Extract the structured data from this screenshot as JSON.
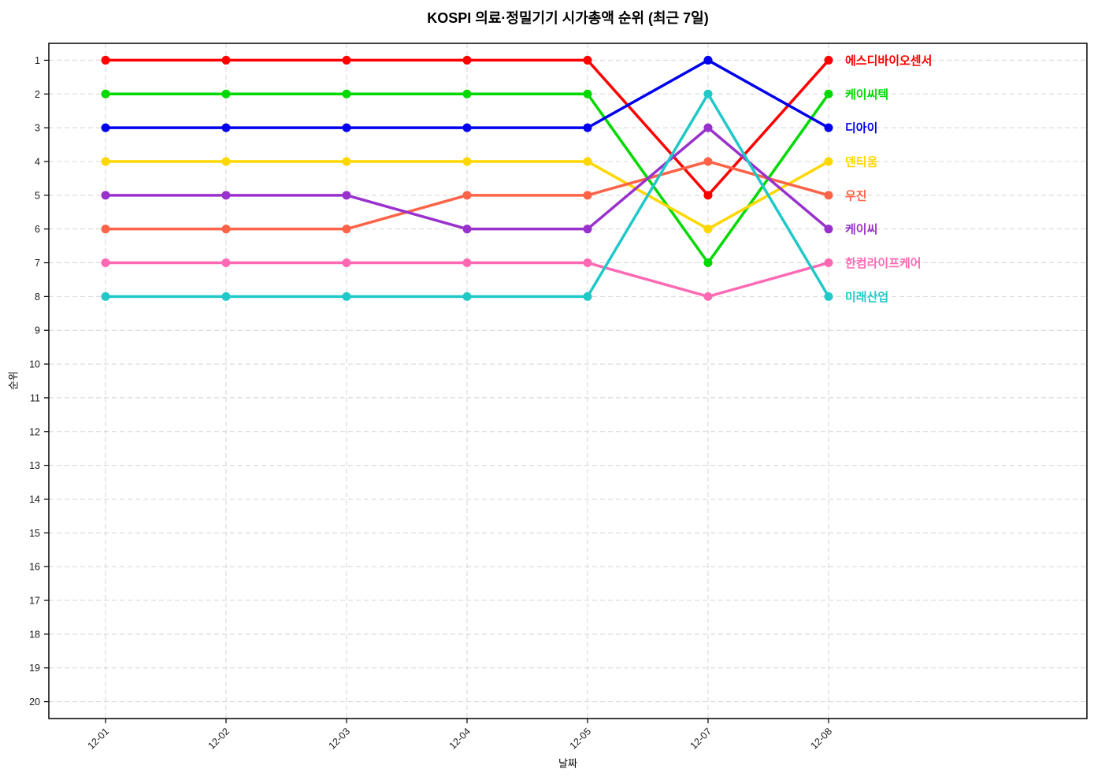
{
  "title": "KOSPI 의료·정밀기기 시가총액 순위 (최근 7일)",
  "chart_data": {
    "type": "line",
    "subtype": "bump-rank-chart",
    "title": "KOSPI 의료·정밀기기 시가총액 순위 (최근 7일)",
    "xlabel": "날짜",
    "ylabel": "순위",
    "x": [
      "12-01",
      "12-02",
      "12-03",
      "12-04",
      "12-05",
      "12-07",
      "12-08"
    ],
    "yticks": [
      1,
      2,
      3,
      4,
      5,
      6,
      7,
      8,
      9,
      10,
      11,
      12,
      13,
      14,
      15,
      16,
      17,
      18,
      19,
      20
    ],
    "ylim": [
      20.5,
      0.5
    ],
    "y_axis_inverted": true,
    "grid": "dashed-both-axes",
    "legend_position": "labels-right-of-last-point",
    "series": [
      {
        "name": "에스디바이오센서",
        "color": "#ff0000",
        "values": [
          1,
          1,
          1,
          1,
          1,
          5,
          1
        ]
      },
      {
        "name": "케이씨텍",
        "color": "#00d900",
        "values": [
          2,
          2,
          2,
          2,
          2,
          7,
          2
        ]
      },
      {
        "name": "디아이",
        "color": "#0000ee",
        "values": [
          3,
          3,
          3,
          3,
          3,
          1,
          3
        ]
      },
      {
        "name": "덴티움",
        "color": "#ffd700",
        "values": [
          4,
          4,
          4,
          4,
          4,
          6,
          4
        ]
      },
      {
        "name": "우진",
        "color": "#ff6347",
        "values": [
          6,
          6,
          6,
          5,
          5,
          4,
          5
        ]
      },
      {
        "name": "케이씨",
        "color": "#9932cc",
        "values": [
          5,
          5,
          5,
          6,
          6,
          3,
          6
        ]
      },
      {
        "name": "한컴라이프케어",
        "color": "#ff69b4",
        "values": [
          7,
          7,
          7,
          7,
          7,
          8,
          7
        ]
      },
      {
        "name": "미래산업",
        "color": "#20c8c8",
        "values": [
          8,
          8,
          8,
          8,
          8,
          2,
          8
        ]
      }
    ]
  }
}
